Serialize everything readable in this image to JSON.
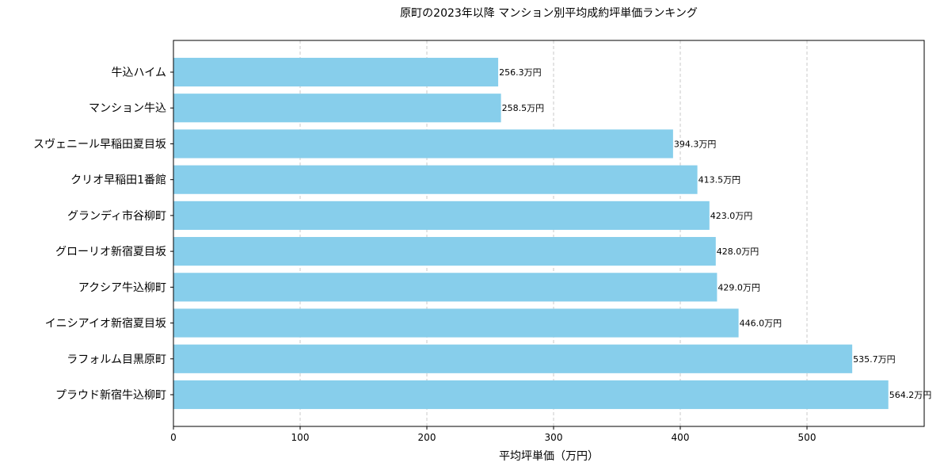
{
  "chart_data": {
    "type": "bar",
    "orientation": "horizontal",
    "title": "原町の2023年以降 マンション別平均成約坪単価ランキング",
    "xlabel": "平均坪単価（万円）",
    "ylabel": "",
    "xlim": [
      0,
      592.5
    ],
    "xticks": [
      0,
      100,
      200,
      300,
      400,
      500
    ],
    "grid": "x-dashed",
    "bar_color": "#87CEEB",
    "label_suffix": "万円",
    "categories": [
      "牛込ハイム",
      "マンション牛込",
      "スヴェニール早稲田夏目坂",
      "クリオ早稲田1番館",
      "グランディ市谷柳町",
      "グローリオ新宿夏目坂",
      "アクシア牛込柳町",
      "イニシアイオ新宿夏目坂",
      "ラフォルム目黒原町",
      "プラウド新宿牛込柳町"
    ],
    "values": [
      256.3,
      258.5,
      394.3,
      413.5,
      423.0,
      428.0,
      429.0,
      446.0,
      535.7,
      564.2
    ],
    "data_labels": [
      "256.3万円",
      "258.5万円",
      "394.3万円",
      "413.5万円",
      "423.0万円",
      "428.0万円",
      "429.0万円",
      "446.0万円",
      "535.7万円",
      "564.2万円"
    ]
  }
}
